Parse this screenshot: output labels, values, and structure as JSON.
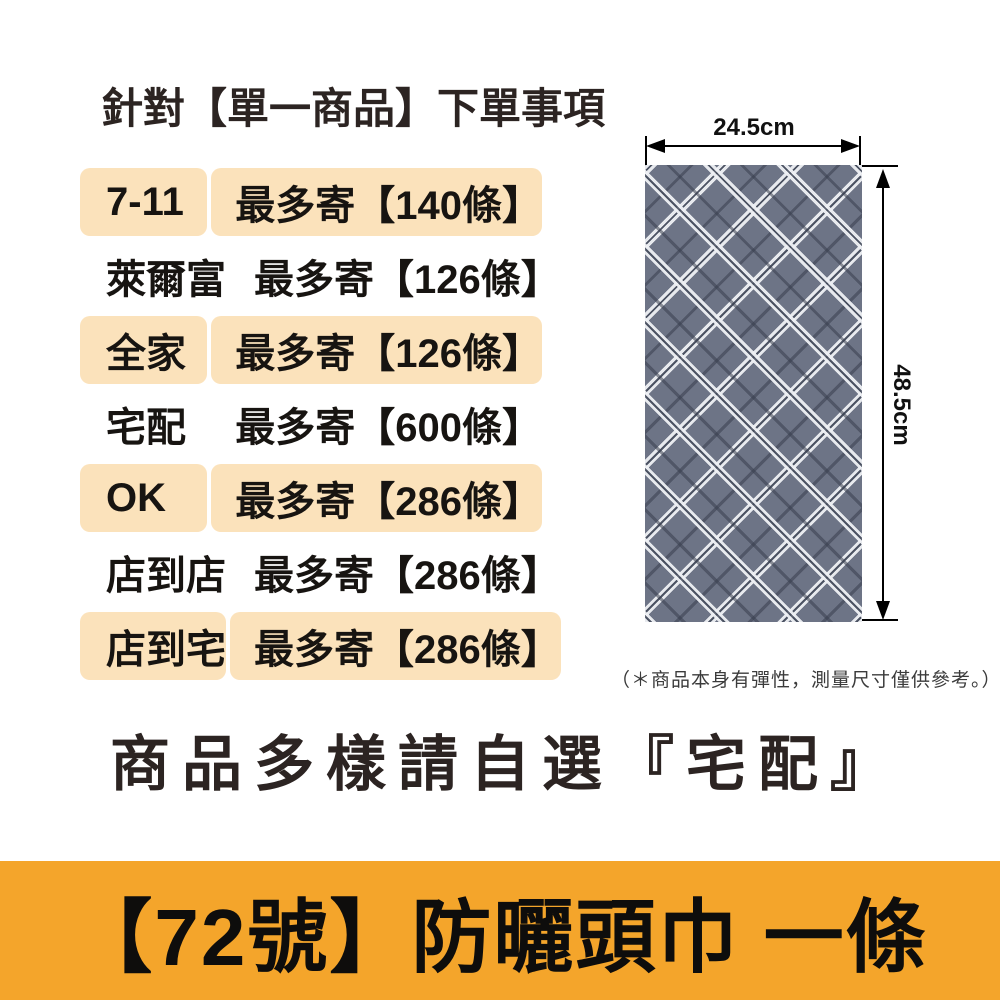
{
  "title": "針對【單一商品】下單事項",
  "shipping_table": {
    "rows": [
      {
        "channel": "7-11",
        "limit": "最多寄【140條】",
        "highlight": true
      },
      {
        "channel": "萊爾富",
        "limit": "最多寄【126條】",
        "highlight": false
      },
      {
        "channel": "全家",
        "limit": "最多寄【126條】",
        "highlight": true
      },
      {
        "channel": "宅配",
        "limit": "最多寄【600條】",
        "highlight": false
      },
      {
        "channel": "OK",
        "limit": "最多寄【286條】",
        "highlight": true
      },
      {
        "channel": "店到店",
        "limit": "最多寄【286條】",
        "highlight": false
      },
      {
        "channel": "店到宅",
        "limit": "最多寄【286條】",
        "highlight": true
      }
    ]
  },
  "product": {
    "description": "plaid-headwrap-photo",
    "width_label": "24.5cm",
    "height_label": "48.5cm",
    "note": "（＊商品本身有彈性，測量尺寸僅供參考。）"
  },
  "statement": "商品多樣請自選『宅配』",
  "banner": {
    "text": "【72號】防曬頭巾 一條"
  },
  "colors": {
    "row_highlight": "#FBE2BB",
    "banner_bg": "#F4A52B",
    "text_dark": "#2C2422",
    "fabric_base": "#6D7486"
  }
}
